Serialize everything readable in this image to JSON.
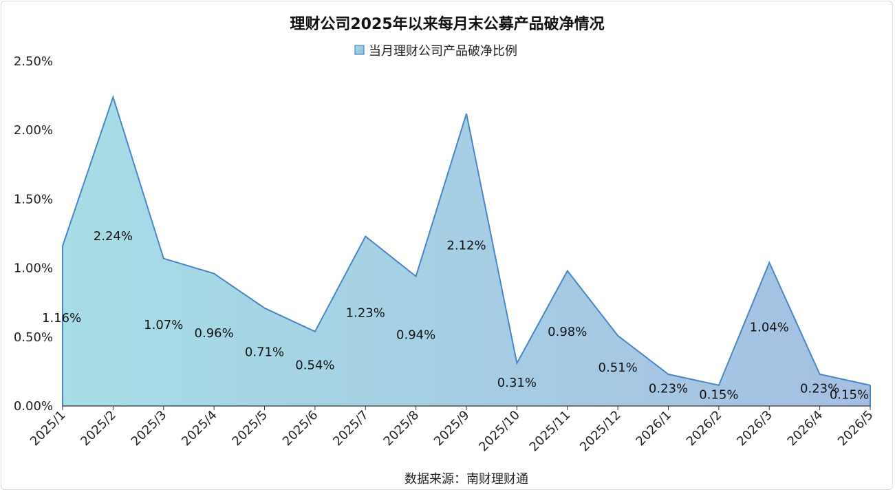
{
  "chart_data": {
    "type": "area",
    "title": "理财公司2025年以来每月末公募产品破净情况",
    "series": [
      {
        "name": "当月理财公司产品破净比例",
        "values": [
          1.16,
          2.24,
          1.07,
          0.96,
          0.71,
          0.54,
          1.23,
          0.94,
          2.12,
          0.31,
          0.98,
          0.51,
          0.23,
          0.15,
          1.04,
          0.23,
          0.15
        ],
        "labels": [
          "1.16%",
          "2.24%",
          "1.07%",
          "0.96%",
          "0.71%",
          "0.54%",
          "1.23%",
          "0.94%",
          "2.12%",
          "0.31%",
          "0.98%",
          "0.51%",
          "0.23%",
          "0.15%",
          "1.04%",
          "0.23%",
          "0.15%"
        ]
      }
    ],
    "categories": [
      "2025/1",
      "2025/2",
      "2025/3",
      "2025/4",
      "2025/5",
      "2025/6",
      "2025/7",
      "2025/8",
      "2025/9",
      "2025/10",
      "2025/11",
      "2025/12",
      "2026/1",
      "2026/2",
      "2026/3",
      "2026/4",
      "2026/5"
    ],
    "yticks": [
      "0.00%",
      "0.50%",
      "1.00%",
      "1.50%",
      "2.00%",
      "2.50%"
    ],
    "ylim": [
      0,
      2.5
    ],
    "grid": false,
    "legend_position": "top-center",
    "source": "数据来源：南财理财通",
    "colors": {
      "line": "#4a86c5",
      "fill_start": "#a7dde6",
      "fill_end": "#a5bfe2",
      "axis": "#333333"
    }
  }
}
